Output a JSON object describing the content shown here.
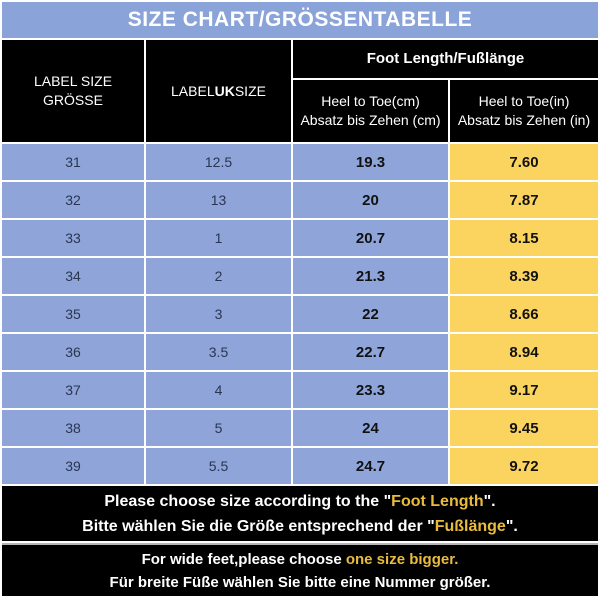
{
  "title": "SIZE CHART/GRÖSSENTABELLE",
  "header": {
    "label_size": "LABEL SIZE\nGRÖSSE",
    "uk_prefix": "LABEL ",
    "uk_bold": "UK",
    "uk_suffix": " SIZE",
    "foot_length": "Foot Length/Fußlänge",
    "cm": "Heel to Toe(cm)\nAbsatz bis Zehen (cm)",
    "in": "Heel to Toe(in)\nAbsatz bis Zehen (in)"
  },
  "chart_data": {
    "type": "table",
    "title": "SIZE CHART/GRÖSSENTABELLE",
    "columns": [
      "LABEL SIZE GRÖSSE",
      "LABEL UK SIZE",
      "Foot Length/Fußlänge — Heel to Toe(cm) Absatz bis Zehen (cm)",
      "Foot Length/Fußlänge — Heel to Toe(in) Absatz bis Zehen (in)"
    ],
    "rows": [
      [
        "31",
        "12.5",
        "19.3",
        "7.60"
      ],
      [
        "32",
        "13",
        "20",
        "7.87"
      ],
      [
        "33",
        "1",
        "20.7",
        "8.15"
      ],
      [
        "34",
        "2",
        "21.3",
        "8.39"
      ],
      [
        "35",
        "3",
        "22",
        "8.66"
      ],
      [
        "36",
        "3.5",
        "22.7",
        "8.94"
      ],
      [
        "37",
        "4",
        "23.3",
        "9.17"
      ],
      [
        "38",
        "5",
        "24",
        "9.45"
      ],
      [
        "39",
        "5.5",
        "24.7",
        "9.72"
      ]
    ]
  },
  "notes": {
    "line1": {
      "prefix": "Please choose size according to the \"",
      "highlight": "Foot Length",
      "suffix": "\"."
    },
    "line2": {
      "prefix": "Bitte wählen Sie die Größe entsprechend der \"",
      "highlight": "Fußlänge",
      "suffix": "\"."
    },
    "line3": {
      "prefix": "For wide feet,please choose ",
      "highlight": "one size bigger.",
      "suffix": ""
    },
    "line4": {
      "prefix": "Für breite Füße wählen Sie bitte eine Nummer größer.",
      "highlight": "",
      "suffix": ""
    }
  },
  "colors": {
    "title_bg": "#8aa3d9",
    "row_blue": "#8fa5d9",
    "inch_column_yellow": "#fbd35f",
    "header_bg": "#000000",
    "highlight_text": "#e9bc3e",
    "grid_line": "#ffffff"
  }
}
